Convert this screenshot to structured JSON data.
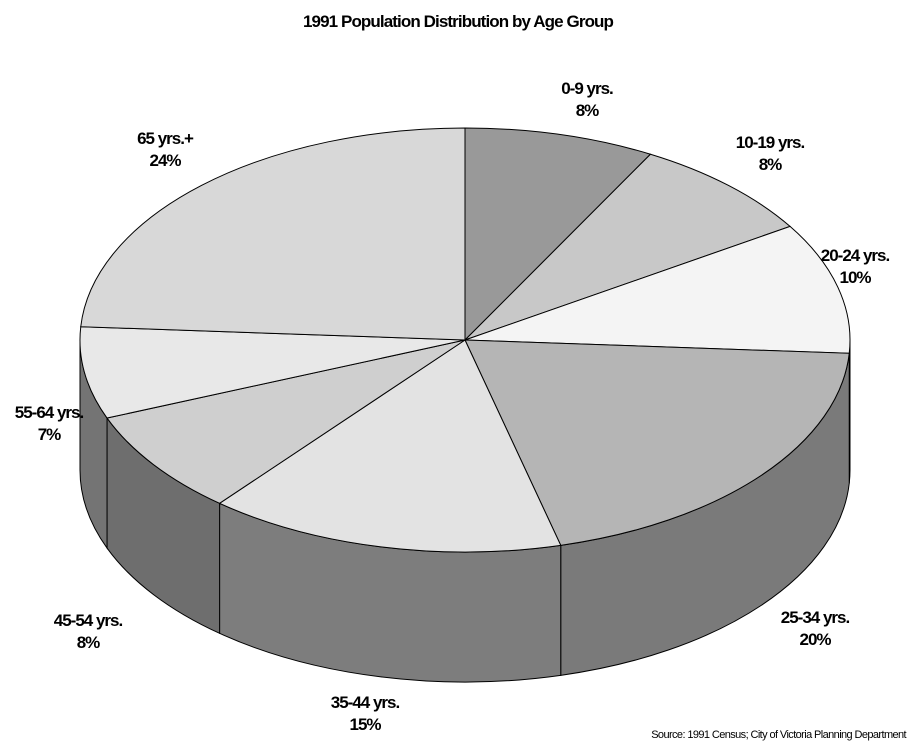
{
  "title": "1991 Population Distribution by Age Group",
  "source": "Source: 1991 Census; City of Victoria Planning Department",
  "chart_data": {
    "type": "pie",
    "style": "3d",
    "legend": "none",
    "slices": [
      {
        "label": "0-9 yrs.",
        "value": 8,
        "value_text": "8%",
        "color": "#999999"
      },
      {
        "label": "10-19 yrs.",
        "value": 8,
        "value_text": "8%",
        "color": "#c8c8c8"
      },
      {
        "label": "20-24 yrs.",
        "value": 10,
        "value_text": "10%",
        "color": "#f4f4f4"
      },
      {
        "label": "25-34 yrs.",
        "value": 20,
        "value_text": "20%",
        "color": "#b5b5b5"
      },
      {
        "label": "35-44 yrs.",
        "value": 15,
        "value_text": "15%",
        "color": "#e3e3e3"
      },
      {
        "label": "45-54 yrs.",
        "value": 8,
        "value_text": "8%",
        "color": "#cfcfcf"
      },
      {
        "label": "55-64 yrs.",
        "value": 7,
        "value_text": "7%",
        "color": "#e8e8e8"
      },
      {
        "label": "65 yrs.+",
        "value": 24,
        "value_text": "24%",
        "color": "#d8d8d8"
      }
    ]
  }
}
